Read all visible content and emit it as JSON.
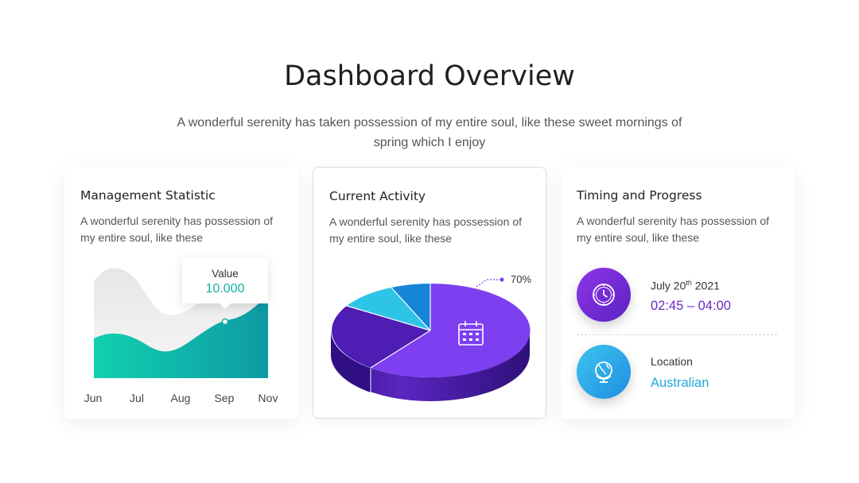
{
  "header": {
    "title": "Dashboard Overview",
    "subtitle": "A wonderful serenity has taken possession of my entire soul, like these sweet mornings of spring which I enjoy"
  },
  "cards": {
    "management": {
      "title": "Management Statistic",
      "description": "A wonderful serenity has possession of my entire soul, like these",
      "tooltip_label": "Value",
      "tooltip_value": "10.000",
      "months": [
        "Jun",
        "Jul",
        "Aug",
        "Sep",
        "Nov"
      ]
    },
    "activity": {
      "title": "Current Activity",
      "description": "A wonderful serenity has possession of my entire soul, like these",
      "percent_label": "70%"
    },
    "timing": {
      "title": "Timing and Progress",
      "description": "A wonderful serenity has possession of my entire soul, like these",
      "date_prefix": "July 20",
      "date_sup": "th",
      "date_year": " 2021",
      "time_range": "02:45 – 04:00",
      "location_label": "Location",
      "location_value": "Australian"
    }
  },
  "colors": {
    "teal": "#13b3a6",
    "purple": "#7b3be8",
    "dark_purple": "#4f1fb0",
    "cyan": "#2ec4e8",
    "blue": "#1685d8",
    "accent_text_purple": "#6a2bc4",
    "accent_text_blue": "#1fa9d6"
  },
  "icons": {
    "activity": "calendar-icon",
    "timing": "clock-icon",
    "location": "globe-icon"
  }
}
